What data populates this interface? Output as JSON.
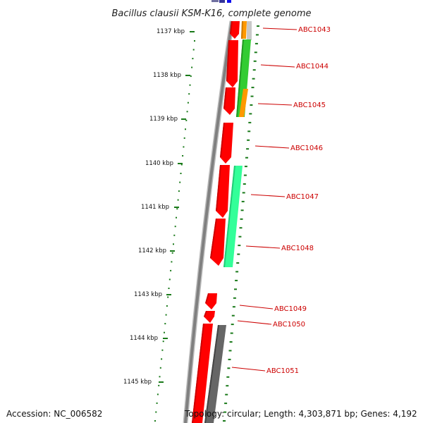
{
  "title": "Bacillus clausii KSM-K16, complete genome",
  "accession": "Accession: NC_006582",
  "topology": "Topology: circular; Length: 4,303,871 bp; Genes: 4,192",
  "colors": {
    "backbone": "#808080",
    "cds": "#ff0000",
    "tick": "#1a7a1a",
    "label": "#cc0000",
    "green": "#33cc33",
    "orange": "#ff9900",
    "aqua": "#33ff99",
    "gray": "#666666",
    "blue": "#1010ee",
    "navy": "#333399"
  },
  "scale_labels": [
    "1137 kbp",
    "1138 kbp",
    "1139 kbp",
    "1140 kbp",
    "1141 kbp",
    "1142 kbp",
    "1143 kbp",
    "1144 kbp",
    "1145 kbp"
  ],
  "gene_labels": [
    "ABC1043",
    "ABC1044",
    "ABC1045",
    "ABC1046",
    "ABC1047",
    "ABC1048",
    "ABC1049",
    "ABC1050",
    "ABC1051"
  ]
}
